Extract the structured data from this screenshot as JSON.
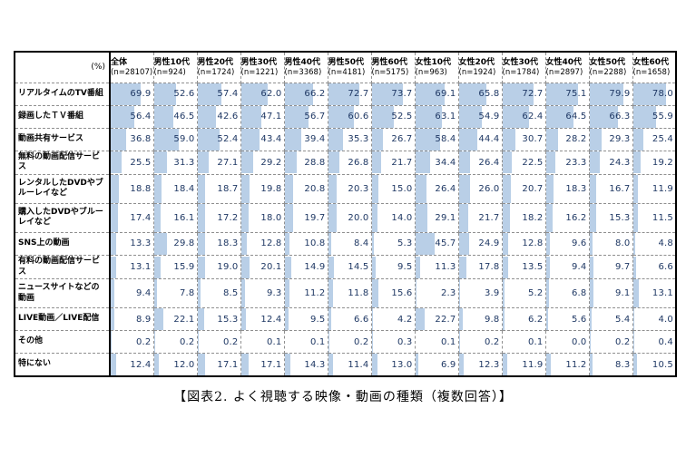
{
  "caption": "【図表2. よく視聴する映像・動画の種類（複数回答）】",
  "colors": {
    "bar": "#b9cfe7",
    "value_text": "#1f3864",
    "outer_border": "#000000",
    "grid_line": "#8f8f8f",
    "background": "#ffffff"
  },
  "chart_data": {
    "type": "table",
    "title": "【図表2. よく視聴する映像・動画の種類（複数回答）】",
    "unit": "%",
    "corner_label": "(%)",
    "bar_scale": [
      0,
      100
    ],
    "columns": [
      {
        "label": "全体",
        "n": "(n=28107)"
      },
      {
        "label": "男性10代",
        "n": "(n=924)"
      },
      {
        "label": "男性20代",
        "n": "(n=1724)"
      },
      {
        "label": "男性30代",
        "n": "(n=1221)"
      },
      {
        "label": "男性40代",
        "n": "(n=3368)"
      },
      {
        "label": "男性50代",
        "n": "(n=4181)"
      },
      {
        "label": "男性60代",
        "n": "(n=5175)"
      },
      {
        "label": "女性10代",
        "n": "(n=963)"
      },
      {
        "label": "女性20代",
        "n": "(n=1924)"
      },
      {
        "label": "女性30代",
        "n": "(n=1784)"
      },
      {
        "label": "女性40代",
        "n": "(n=2897)"
      },
      {
        "label": "女性50代",
        "n": "(n=2288)"
      },
      {
        "label": "女性60代",
        "n": "(n=1658)"
      }
    ],
    "rows": [
      {
        "label": "リアルタイムのTV番組",
        "values": [
          69.9,
          52.6,
          57.4,
          62.0,
          66.2,
          72.7,
          73.7,
          69.1,
          65.8,
          72.7,
          75.1,
          79.9,
          78.0
        ]
      },
      {
        "label": "録画したＴＶ番組",
        "values": [
          56.4,
          46.5,
          42.6,
          47.1,
          56.7,
          60.6,
          52.5,
          63.1,
          54.9,
          62.4,
          64.5,
          66.3,
          55.9
        ]
      },
      {
        "label": "動画共有サービス",
        "values": [
          36.8,
          59.0,
          52.4,
          43.4,
          39.4,
          35.3,
          26.7,
          58.4,
          44.4,
          30.7,
          28.2,
          29.3,
          25.4
        ]
      },
      {
        "label": "無料の動画配信サービス",
        "values": [
          25.5,
          31.3,
          27.1,
          29.2,
          28.8,
          26.8,
          21.7,
          34.4,
          26.4,
          22.5,
          23.3,
          24.3,
          19.2
        ]
      },
      {
        "label": "レンタルしたDVDやブルーレイなど",
        "values": [
          18.8,
          18.4,
          18.7,
          19.8,
          20.8,
          20.3,
          15.0,
          26.4,
          26.0,
          20.7,
          18.3,
          16.7,
          11.9
        ]
      },
      {
        "label": "購入したDVDやブルーレイなど",
        "values": [
          17.4,
          16.1,
          17.2,
          18.0,
          19.7,
          20.0,
          14.0,
          29.1,
          21.7,
          18.2,
          16.2,
          15.3,
          11.5
        ]
      },
      {
        "label": "SNS上の動画",
        "values": [
          13.3,
          29.8,
          18.3,
          12.8,
          10.8,
          8.4,
          5.3,
          45.7,
          24.9,
          12.8,
          9.6,
          8.0,
          4.8
        ]
      },
      {
        "label": "有料の動画配信サービス",
        "values": [
          13.1,
          15.9,
          19.0,
          20.1,
          14.9,
          14.5,
          9.5,
          11.3,
          17.8,
          13.5,
          9.4,
          9.7,
          6.6
        ]
      },
      {
        "label": "ニュースサイトなどの動画",
        "values": [
          9.4,
          7.8,
          8.5,
          9.3,
          11.2,
          11.8,
          15.6,
          2.3,
          3.9,
          5.2,
          6.8,
          9.1,
          13.1
        ]
      },
      {
        "label": "LIVE動画／LIVE配信",
        "values": [
          8.9,
          22.1,
          15.3,
          12.4,
          9.5,
          6.6,
          4.2,
          22.7,
          9.8,
          6.2,
          5.6,
          5.4,
          4.0
        ]
      },
      {
        "label": "その他",
        "values": [
          0.2,
          0.2,
          0.2,
          0.1,
          0.1,
          0.2,
          0.3,
          0.1,
          0.2,
          0.1,
          0.0,
          0.2,
          0.4
        ]
      },
      {
        "label": "特にない",
        "values": [
          12.4,
          12.0,
          17.1,
          17.1,
          14.3,
          11.4,
          13.0,
          6.9,
          12.3,
          11.9,
          11.2,
          8.3,
          10.5
        ]
      }
    ]
  }
}
